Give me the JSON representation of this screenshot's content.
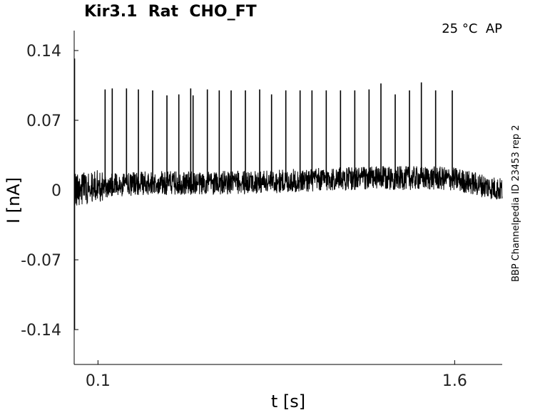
{
  "chart_data": {
    "type": "line",
    "title": "Kir3.1  Rat  CHO_FT",
    "annotation": "25 °C  AP",
    "side_label": "BBP Channelpedia ID 23453 rep 2",
    "xlabel": "t [s]",
    "ylabel": "I [nA]",
    "xlim": [
      0,
      1.8
    ],
    "ylim": [
      -0.175,
      0.16
    ],
    "xticks": [
      0.1,
      1.6
    ],
    "xtick_labels": [
      "0.1",
      "1.6"
    ],
    "yticks": [
      0.14,
      0.07,
      0,
      -0.07,
      -0.14
    ],
    "ytick_labels": [
      "0.14",
      "0.07",
      "0",
      "-0.07",
      "-0.14"
    ],
    "grid": false,
    "series": [
      {
        "color": "#000000",
        "baseline": [
          {
            "t": 0.0,
            "i": 0.0
          },
          {
            "t": 0.1,
            "i": 0.004
          },
          {
            "t": 0.3,
            "i": 0.007
          },
          {
            "t": 0.6,
            "i": 0.007
          },
          {
            "t": 0.9,
            "i": 0.009
          },
          {
            "t": 1.2,
            "i": 0.012
          },
          {
            "t": 1.5,
            "i": 0.012
          },
          {
            "t": 1.6,
            "i": 0.011
          },
          {
            "t": 1.8,
            "i": 0.0
          }
        ],
        "noise_amplitude": 0.012,
        "onset_transient": {
          "t": 0.0,
          "max": 0.132,
          "min": -0.14
        },
        "spikes": [
          {
            "t": 0.13,
            "peak": 0.101
          },
          {
            "t": 0.16,
            "peak": 0.102
          },
          {
            "t": 0.22,
            "peak": 0.102
          },
          {
            "t": 0.27,
            "peak": 0.101
          },
          {
            "t": 0.33,
            "peak": 0.1
          },
          {
            "t": 0.39,
            "peak": 0.095
          },
          {
            "t": 0.44,
            "peak": 0.096
          },
          {
            "t": 0.49,
            "peak": 0.102
          },
          {
            "t": 0.5,
            "peak": 0.095
          },
          {
            "t": 0.56,
            "peak": 0.101
          },
          {
            "t": 0.61,
            "peak": 0.1
          },
          {
            "t": 0.66,
            "peak": 0.1
          },
          {
            "t": 0.72,
            "peak": 0.1
          },
          {
            "t": 0.78,
            "peak": 0.101
          },
          {
            "t": 0.83,
            "peak": 0.096
          },
          {
            "t": 0.89,
            "peak": 0.1
          },
          {
            "t": 0.95,
            "peak": 0.1
          },
          {
            "t": 1.0,
            "peak": 0.1
          },
          {
            "t": 1.06,
            "peak": 0.1
          },
          {
            "t": 1.12,
            "peak": 0.1
          },
          {
            "t": 1.18,
            "peak": 0.1
          },
          {
            "t": 1.24,
            "peak": 0.101
          },
          {
            "t": 1.29,
            "peak": 0.107
          },
          {
            "t": 1.35,
            "peak": 0.096
          },
          {
            "t": 1.41,
            "peak": 0.1
          },
          {
            "t": 1.46,
            "peak": 0.108
          },
          {
            "t": 1.52,
            "peak": 0.1
          },
          {
            "t": 1.59,
            "peak": 0.1
          }
        ]
      }
    ]
  }
}
